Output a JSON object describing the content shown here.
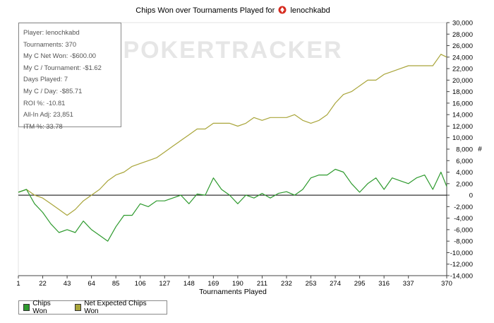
{
  "chart_data": {
    "type": "line",
    "title": "Chips Won over Tournaments Played for",
    "player_name": "lenochkabd",
    "watermark": "POKERTRACKER",
    "xlabel": "Tournaments Played",
    "ylabel": "#",
    "x_ticks": [
      1,
      22,
      43,
      64,
      85,
      106,
      127,
      148,
      169,
      190,
      211,
      232,
      253,
      274,
      295,
      316,
      337,
      370
    ],
    "xlim": [
      1,
      370
    ],
    "ylim": [
      -14000,
      30000
    ],
    "y_ticks": [
      -14000,
      -12000,
      -10000,
      -8000,
      -6000,
      -4000,
      -2000,
      0,
      2000,
      4000,
      6000,
      8000,
      10000,
      12000,
      14000,
      16000,
      18000,
      20000,
      22000,
      24000,
      26000,
      28000,
      30000
    ],
    "stats": [
      "Player: lenochkabd",
      "Tournaments: 370",
      "My C Net Won: -$600.00",
      "My C / Tournament: -$1.62",
      "Days Played: 7",
      "My C / Day: -$85.71",
      "ROI %: -10.81",
      "All-In Adj: 23,851",
      "ITM %: 33.78"
    ],
    "legend": [
      {
        "name": "Chips Won",
        "color": "#2e9a2e"
      },
      {
        "name": "Net Expected Chips Won",
        "color": "#a9a53a"
      }
    ],
    "series": [
      {
        "name": "Chips Won",
        "color": "#2e9a2e",
        "x": [
          1,
          8,
          15,
          22,
          29,
          36,
          43,
          50,
          57,
          64,
          71,
          78,
          85,
          92,
          99,
          106,
          113,
          120,
          127,
          134,
          141,
          148,
          155,
          162,
          169,
          176,
          183,
          190,
          197,
          204,
          211,
          218,
          225,
          232,
          239,
          246,
          253,
          260,
          267,
          274,
          281,
          288,
          295,
          302,
          309,
          316,
          323,
          330,
          337,
          344,
          351,
          358,
          365,
          370
        ],
        "values": [
          500,
          1000,
          -1500,
          -3000,
          -5000,
          -6500,
          -6000,
          -6500,
          -4500,
          -6000,
          -7000,
          -8000,
          -5500,
          -3500,
          -3500,
          -1500,
          -2000,
          -1000,
          -1000,
          -500,
          0,
          -1500,
          200,
          0,
          3000,
          1000,
          0,
          -1500,
          0,
          -500,
          300,
          -500,
          300,
          600,
          0,
          1000,
          3000,
          3500,
          3500,
          4500,
          4000,
          2000,
          500,
          2000,
          3000,
          1000,
          3000,
          2500,
          2000,
          3000,
          3500,
          1000,
          4000,
          1500
        ]
      },
      {
        "name": "Net Expected Chips Won",
        "color": "#a9a53a",
        "x": [
          1,
          8,
          15,
          22,
          29,
          36,
          43,
          50,
          57,
          64,
          71,
          78,
          85,
          92,
          99,
          106,
          113,
          120,
          127,
          134,
          141,
          148,
          155,
          162,
          169,
          176,
          183,
          190,
          197,
          204,
          211,
          218,
          225,
          232,
          239,
          246,
          253,
          260,
          267,
          274,
          281,
          288,
          295,
          302,
          309,
          316,
          323,
          330,
          337,
          344,
          351,
          358,
          365,
          370
        ],
        "values": [
          500,
          1000,
          0,
          -500,
          -1500,
          -2500,
          -3500,
          -2500,
          -1000,
          0,
          1000,
          2500,
          3500,
          4000,
          5000,
          5500,
          6000,
          6500,
          7500,
          8500,
          9500,
          10500,
          11500,
          11500,
          12500,
          12500,
          12500,
          12000,
          12500,
          13500,
          13000,
          13500,
          13500,
          13500,
          14000,
          13000,
          12500,
          13000,
          14000,
          16000,
          17500,
          18000,
          19000,
          20000,
          20000,
          21000,
          21500,
          22000,
          22500,
          22500,
          22500,
          22500,
          24500,
          24000
        ]
      }
    ]
  }
}
